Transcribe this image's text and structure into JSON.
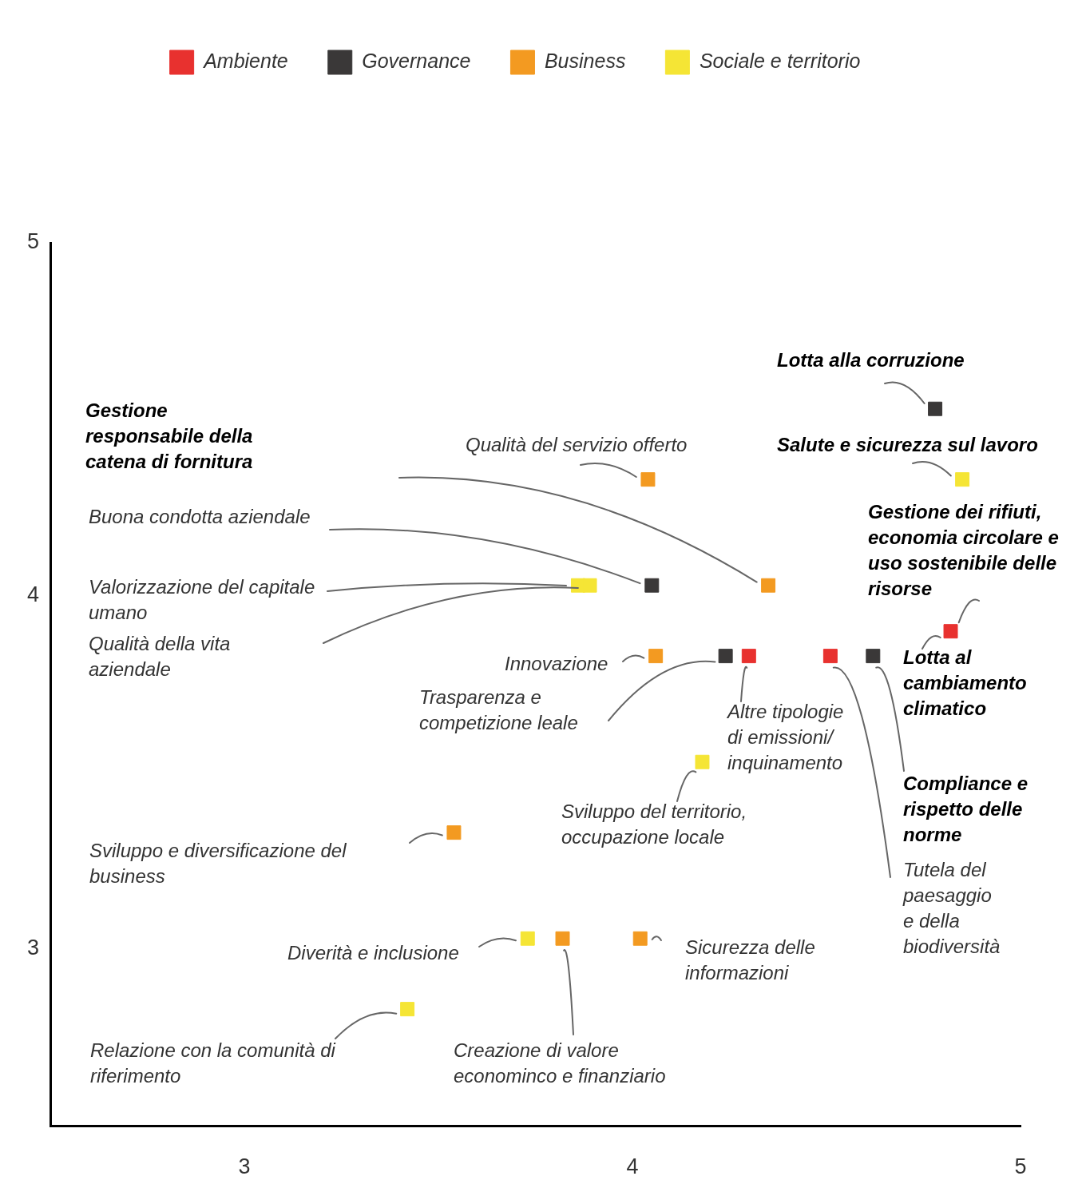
{
  "chart_data": {
    "type": "scatter",
    "legend": "top",
    "marker": "square",
    "grid": false,
    "xlim": [
      2.5,
      5
    ],
    "xticks": [
      3,
      4,
      5
    ],
    "ylim": [
      2.5,
      5
    ],
    "yticks": [
      3,
      4,
      5
    ],
    "series": [
      {
        "name": "Ambiente",
        "color": "#e8312f",
        "x": [
          4.3,
          4.51,
          4.82
        ],
        "values": [
          3.83,
          3.83,
          3.9
        ]
      },
      {
        "name": "Governance",
        "color": "#3a3838",
        "x": [
          4.78,
          4.05,
          4.24,
          4.62
        ],
        "values": [
          4.53,
          4.03,
          3.83,
          3.83
        ]
      },
      {
        "name": "Business",
        "color": "#f39a21",
        "x": [
          4.04,
          4.35,
          4.06,
          3.54,
          3.82,
          4.02
        ],
        "values": [
          4.33,
          4.03,
          3.83,
          3.33,
          3.03,
          3.03
        ]
      },
      {
        "name": "Sociale e territorio",
        "color": "#f5e535",
        "x": [
          4.85,
          3.86,
          3.89,
          4.18,
          3.73,
          3.42
        ],
        "values": [
          4.33,
          4.03,
          4.03,
          3.53,
          3.03,
          2.83
        ]
      }
    ],
    "annotations": [
      {
        "text": "Lotta alla corruzione",
        "x": 4.78,
        "y": 4.53
      },
      {
        "text": "Salute e sicurezza sul lavoro",
        "x": 4.85,
        "y": 4.33
      },
      {
        "text": "Gestione dei rifiuti, economia circolare e uso sostenibile delle risorse",
        "x": 4.82,
        "y": 3.9
      },
      {
        "text": "Lotta al cambiamento climatico",
        "x": 4.82,
        "y": 3.9
      },
      "Compliance e rispetto delle norme",
      "Tutela del paesaggio e della biodiversità",
      {
        "text": "Altre tipologie di emissioni/ inquinamento",
        "x": 4.3,
        "y": 3.83
      },
      {
        "text": "Sviluppo del territorio, occupazione locale",
        "x": 4.18,
        "y": 3.53
      },
      {
        "text": "Qualità del servizio offerto",
        "x": 4.04,
        "y": 4.33
      },
      "Gestione responsabile della catena di fornitura",
      "Buona condotta aziendale",
      {
        "text": "Valorizzazione del capitale umano",
        "x": 3.86,
        "y": 4.03
      },
      "Qualità della vita aziendale",
      {
        "text": "Innovazione",
        "x": 4.06,
        "y": 3.83
      },
      "Trasparenza e competizione leale",
      "Sviluppo e diversificazione del business",
      "Diverità e inclusione",
      {
        "text": "Sicurezza delle informazioni",
        "x": 4.02,
        "y": 3.03
      },
      "Creazione di valore econominco e finanziario",
      "Relazione con la comunità di riferimento"
    ]
  }
}
